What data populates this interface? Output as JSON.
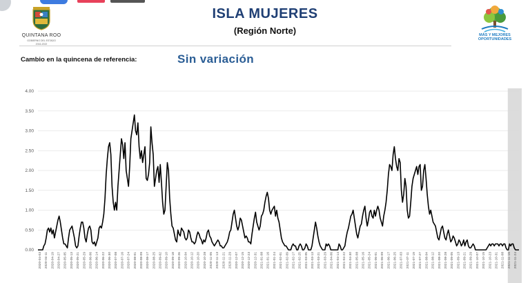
{
  "header": {
    "title": "ISLA MUJERES",
    "subtitle": "(Región Norte)",
    "left_logo": {
      "text": "QUINTANA ROO",
      "small1": "GOBIERNO DEL ESTADO",
      "small2": "2016-2022",
      "icon": "state-shield-icon"
    },
    "right_logo": {
      "text_line1": "MÁS Y MEJORES",
      "text_line2": "OPORTUNIDADES",
      "icon": "tree-icon"
    }
  },
  "reference": {
    "label": "Cambio en la quincena de referencia:",
    "value": "Sin variación"
  },
  "colors": {
    "title": "#1f3f74",
    "value": "#2a5d95",
    "line": "#000000",
    "highlight": "#d8d8d8",
    "grid": "#e4e4e4"
  },
  "chart_data": {
    "type": "line",
    "title": "",
    "xlabel": "",
    "ylabel": "",
    "ylim": [
      0,
      4
    ],
    "yticks": [
      "0.00",
      "0.50",
      "1.00",
      "1.50",
      "2.00",
      "2.50",
      "3.00",
      "3.50",
      "4.00"
    ],
    "grid": "horizontal",
    "highlight_region": [
      "2021-11-09",
      "2021-11-24"
    ],
    "xtick_labels": [
      "2020-04-03",
      "2020-04-11",
      "2020-04-19",
      "2020-04-27",
      "2020-05-05",
      "2020-05-13",
      "2020-05-21",
      "2020-05-29",
      "2020-06-06",
      "2020-06-14",
      "2020-06-22",
      "2020-06-30",
      "2020-07-08",
      "2020-07-16",
      "2020-07-24",
      "2020-08-01",
      "2020-08-09",
      "2020-08-17",
      "2020-08-25",
      "2020-09-02",
      "2020-09-10",
      "2020-09-18",
      "2020-09-26",
      "2020-10-04",
      "2020-10-12",
      "2020-10-20",
      "2020-10-28",
      "2020-11-05",
      "2020-11-13",
      "2020-11-21",
      "2020-11-29",
      "2020-12-07",
      "2020-12-15",
      "2020-12-23",
      "2020-12-31",
      "2021-01-08",
      "2021-01-16",
      "2021-01-24",
      "2021-02-01",
      "2021-02-09",
      "2021-02-17",
      "2021-02-25",
      "2021-03-05",
      "2021-03-13",
      "2021-03-21",
      "2021-03-29",
      "2021-04-06",
      "2021-04-14",
      "2021-04-22",
      "2021-04-30",
      "2021-05-08",
      "2021-05-16",
      "2021-05-24",
      "2021-06-01",
      "2021-06-09",
      "2021-06-17",
      "2021-06-25",
      "2021-07-03",
      "2021-07-11",
      "2021-07-19",
      "2021-07-27",
      "2021-08-04",
      "2021-08-12",
      "2021-08-20",
      "2021-08-28",
      "2021-09-05",
      "2021-09-13",
      "2021-09-21",
      "2021-09-29",
      "2021-10-07",
      "2021-10-15",
      "2021-10-23",
      "2021-10-31",
      "2021-11-08",
      "2021-11-16",
      "2021-11-24"
    ],
    "series": [
      {
        "values": [
          0,
          0,
          0,
          0,
          0,
          0.1,
          0.15,
          0.3,
          0.5,
          0.55,
          0.45,
          0.55,
          0.4,
          0.5,
          0.3,
          0.45,
          0.6,
          0.75,
          0.85,
          0.7,
          0.5,
          0.3,
          0.15,
          0.15,
          0.1,
          0.05,
          0.3,
          0.5,
          0.55,
          0.6,
          0.45,
          0.3,
          0.1,
          0.05,
          0.1,
          0.35,
          0.55,
          0.7,
          0.7,
          0.55,
          0.3,
          0.2,
          0.4,
          0.55,
          0.6,
          0.5,
          0.2,
          0.15,
          0.2,
          0.1,
          0.2,
          0.3,
          0.55,
          0.6,
          0.55,
          0.7,
          0.9,
          1.3,
          1.9,
          2.3,
          2.6,
          2.7,
          2.4,
          1.6,
          1.2,
          1.0,
          1.2,
          1.0,
          1.6,
          2.0,
          2.4,
          2.8,
          2.65,
          2.3,
          2.7,
          2.0,
          1.8,
          1.6,
          2.1,
          2.8,
          3.0,
          3.2,
          3.4,
          3.0,
          2.9,
          3.2,
          2.6,
          2.3,
          2.5,
          2.2,
          2.4,
          2.6,
          1.8,
          1.75,
          1.9,
          2.2,
          3.1,
          2.7,
          2.4,
          1.6,
          1.8,
          2.0,
          2.1,
          1.7,
          2.15,
          1.7,
          1.2,
          0.9,
          1.0,
          1.6,
          2.2,
          2.0,
          1.3,
          0.9,
          0.6,
          0.55,
          0.4,
          0.25,
          0.2,
          0.5,
          0.4,
          0.35,
          0.55,
          0.5,
          0.45,
          0.3,
          0.25,
          0.3,
          0.5,
          0.45,
          0.3,
          0.2,
          0.2,
          0.15,
          0.2,
          0.35,
          0.45,
          0.4,
          0.3,
          0.25,
          0.15,
          0.25,
          0.2,
          0.3,
          0.45,
          0.5,
          0.35,
          0.3,
          0.2,
          0.15,
          0.1,
          0.15,
          0.2,
          0.25,
          0.2,
          0.1,
          0.1,
          0.05,
          0.05,
          0.1,
          0.15,
          0.2,
          0.3,
          0.45,
          0.5,
          0.7,
          0.9,
          1.0,
          0.8,
          0.6,
          0.5,
          0.6,
          0.8,
          0.75,
          0.6,
          0.45,
          0.3,
          0.35,
          0.3,
          0.2,
          0.2,
          0.15,
          0.4,
          0.6,
          0.8,
          0.95,
          0.7,
          0.6,
          0.5,
          0.6,
          0.85,
          0.9,
          1.0,
          1.2,
          1.35,
          1.45,
          1.3,
          1.0,
          0.9,
          1.0,
          1.05,
          1.1,
          0.85,
          1.0,
          0.8,
          0.7,
          0.5,
          0.3,
          0.2,
          0.15,
          0.1,
          0.1,
          0.05,
          0,
          0,
          0,
          0.1,
          0.15,
          0.1,
          0.1,
          0,
          0,
          0.1,
          0.15,
          0.1,
          0,
          0,
          0.05,
          0.15,
          0.1,
          0,
          0,
          0,
          0.1,
          0.3,
          0.5,
          0.7,
          0.55,
          0.35,
          0.2,
          0.1,
          0.05,
          0,
          0,
          0,
          0.15,
          0.1,
          0.15,
          0.1,
          0,
          0,
          0,
          0,
          0,
          0,
          0,
          0.15,
          0.1,
          0,
          0,
          0.05,
          0.1,
          0.3,
          0.45,
          0.55,
          0.7,
          0.85,
          0.9,
          1.0,
          0.8,
          0.6,
          0.4,
          0.3,
          0.45,
          0.6,
          0.65,
          0.85,
          1.0,
          1.1,
          0.8,
          0.6,
          0.75,
          0.95,
          1.0,
          0.85,
          0.8,
          1.0,
          0.85,
          1.0,
          1.1,
          1.0,
          0.8,
          0.7,
          0.6,
          0.85,
          1.0,
          1.2,
          1.5,
          1.9,
          2.15,
          2.1,
          2.0,
          2.4,
          2.6,
          2.3,
          2.1,
          2.0,
          2.3,
          2.2,
          1.5,
          1.2,
          1.4,
          1.8,
          1.6,
          1.0,
          0.8,
          0.85,
          1.2,
          1.6,
          1.8,
          1.9,
          2.0,
          2.1,
          1.9,
          2.1,
          2.15,
          1.5,
          1.6,
          2.0,
          2.15,
          1.8,
          1.4,
          1.1,
          0.9,
          1.0,
          0.85,
          0.7,
          0.65,
          0.6,
          0.45,
          0.3,
          0.25,
          0.4,
          0.55,
          0.6,
          0.45,
          0.3,
          0.25,
          0.4,
          0.5,
          0.35,
          0.2,
          0.25,
          0.35,
          0.3,
          0.2,
          0.1,
          0.15,
          0.25,
          0.2,
          0.1,
          0.15,
          0.25,
          0.1,
          0.2,
          0.25,
          0.1,
          0.05,
          0.05,
          0.1,
          0.15,
          0.1,
          0,
          0,
          0,
          0,
          0,
          0,
          0,
          0,
          0,
          0,
          0.05,
          0.1,
          0.15,
          0.1,
          0.15,
          0.15,
          0.1,
          0.15,
          0.15,
          0.15,
          0.1,
          0.15,
          0.15,
          0.1,
          0.15,
          0.15,
          0.05,
          0,
          0,
          0.15,
          0.1,
          0.15,
          0.15,
          0.05,
          0,
          0,
          0,
          0
        ]
      }
    ]
  }
}
